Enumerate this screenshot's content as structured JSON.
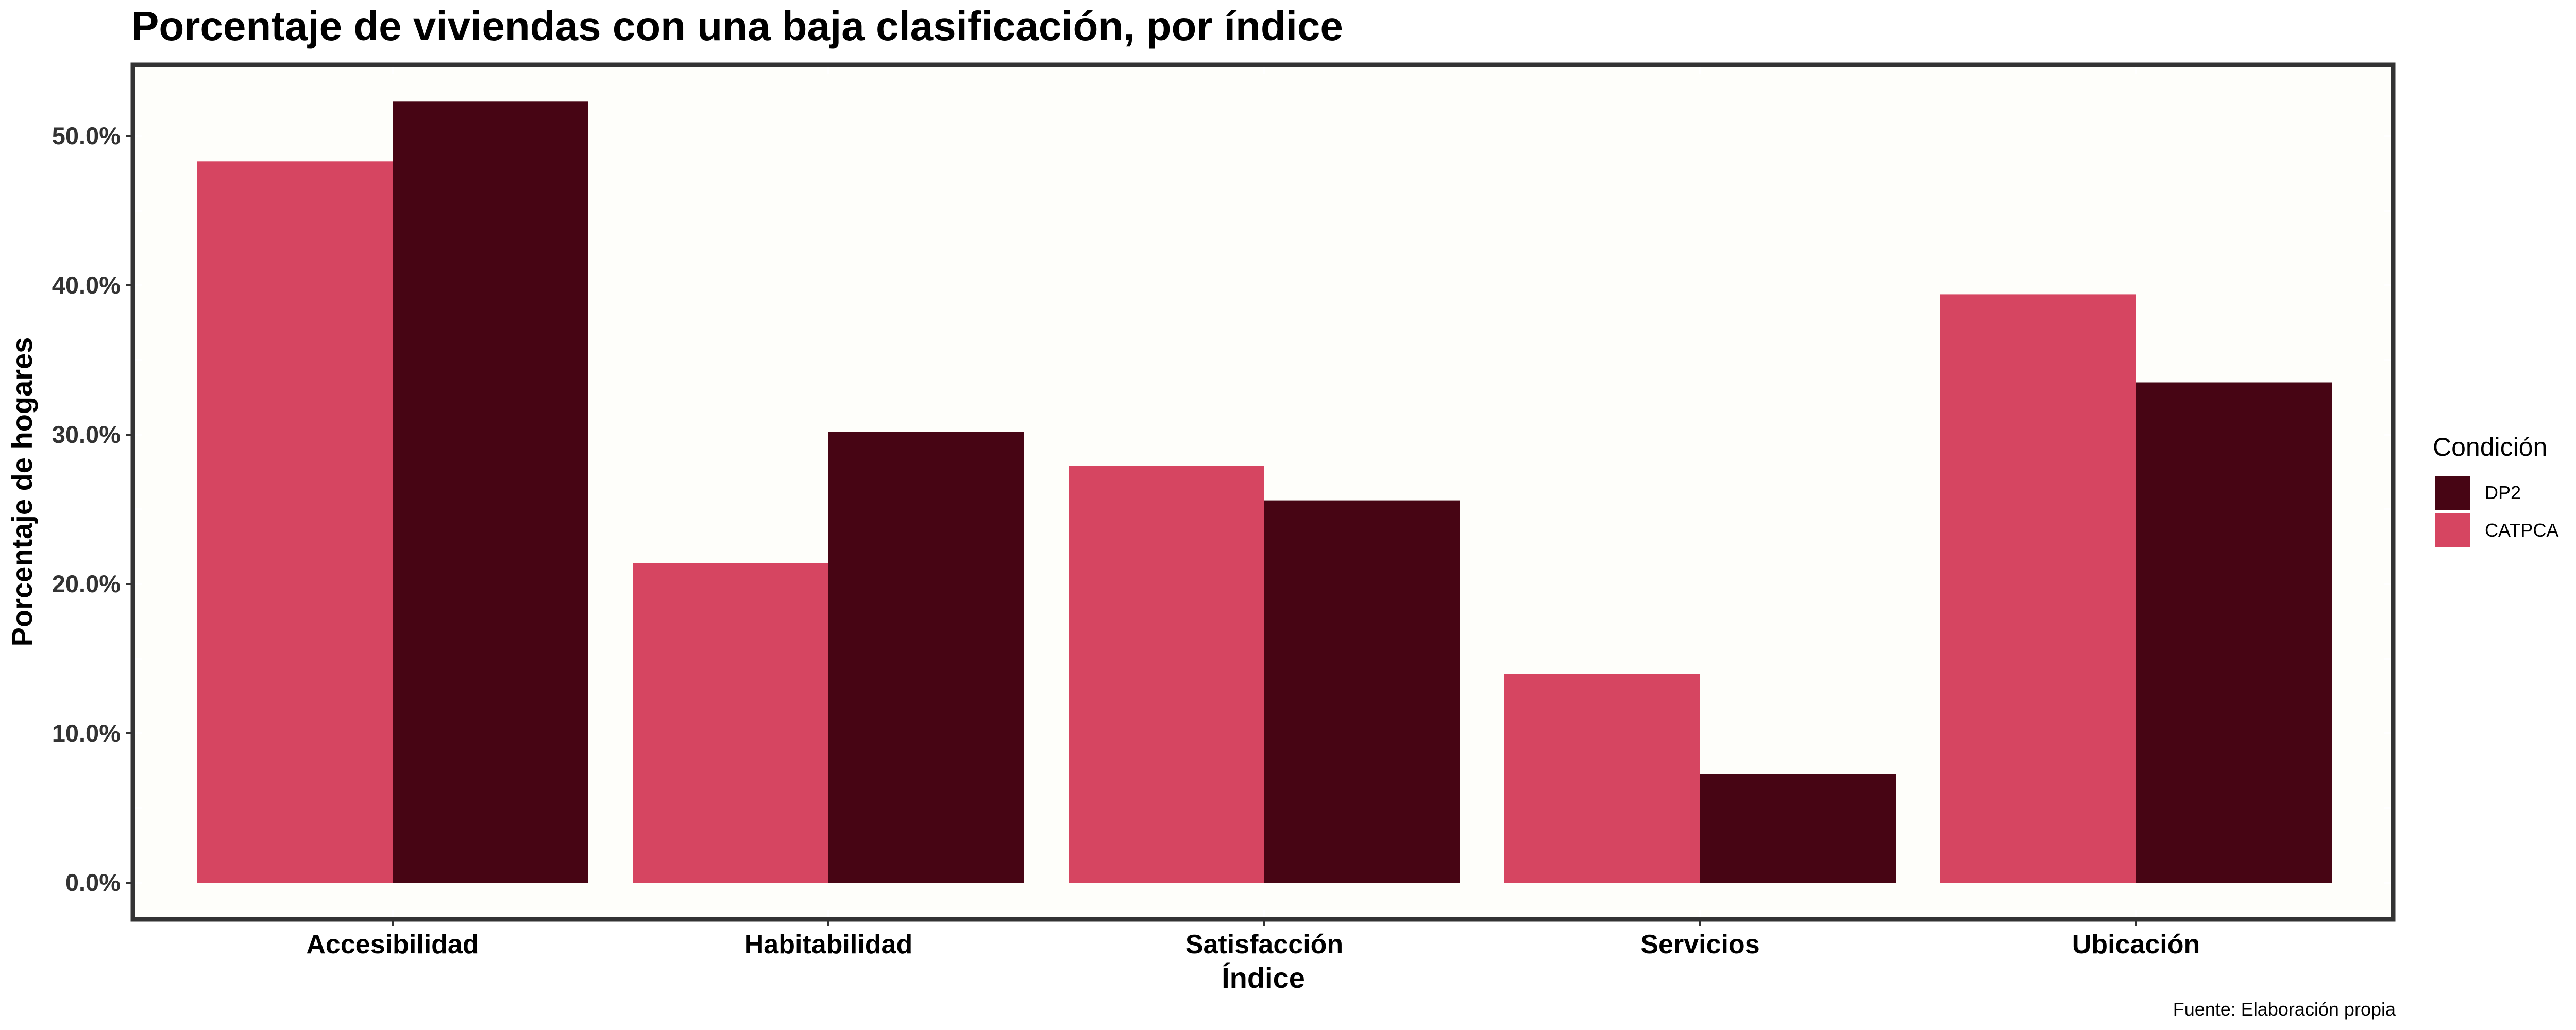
{
  "chart_data": {
    "type": "bar",
    "title": "Porcentaje de viviendas con una baja clasificación, por índice",
    "xlabel": "Índice",
    "ylabel": "Porcentaje de hogares",
    "categories": [
      "Accesibilidad",
      "Habitabilidad",
      "Satisfacción",
      "Servicios",
      "Ubicación"
    ],
    "series": [
      {
        "name": "CATPCA",
        "color": "#d64561",
        "values": [
          48.3,
          21.4,
          27.9,
          14.0,
          39.4
        ]
      },
      {
        "name": "DP2",
        "color": "#470514",
        "values": [
          52.3,
          30.2,
          25.6,
          7.3,
          33.5
        ]
      }
    ],
    "ylim": [
      0,
      55
    ],
    "yticks": [
      0,
      10,
      20,
      30,
      40,
      50
    ],
    "ytick_labels": [
      "0.0%",
      "10.0%",
      "20.0%",
      "30.0%",
      "40.0%",
      "50.0%"
    ],
    "legend": {
      "title": "Condición",
      "position": "right",
      "entries": [
        {
          "label": "DP2",
          "color": "#470514"
        },
        {
          "label": "CATPCA",
          "color": "#d64561"
        }
      ]
    },
    "caption": "Fuente: Elaboración propia",
    "panel_background": "#fefefa",
    "grid": false
  }
}
